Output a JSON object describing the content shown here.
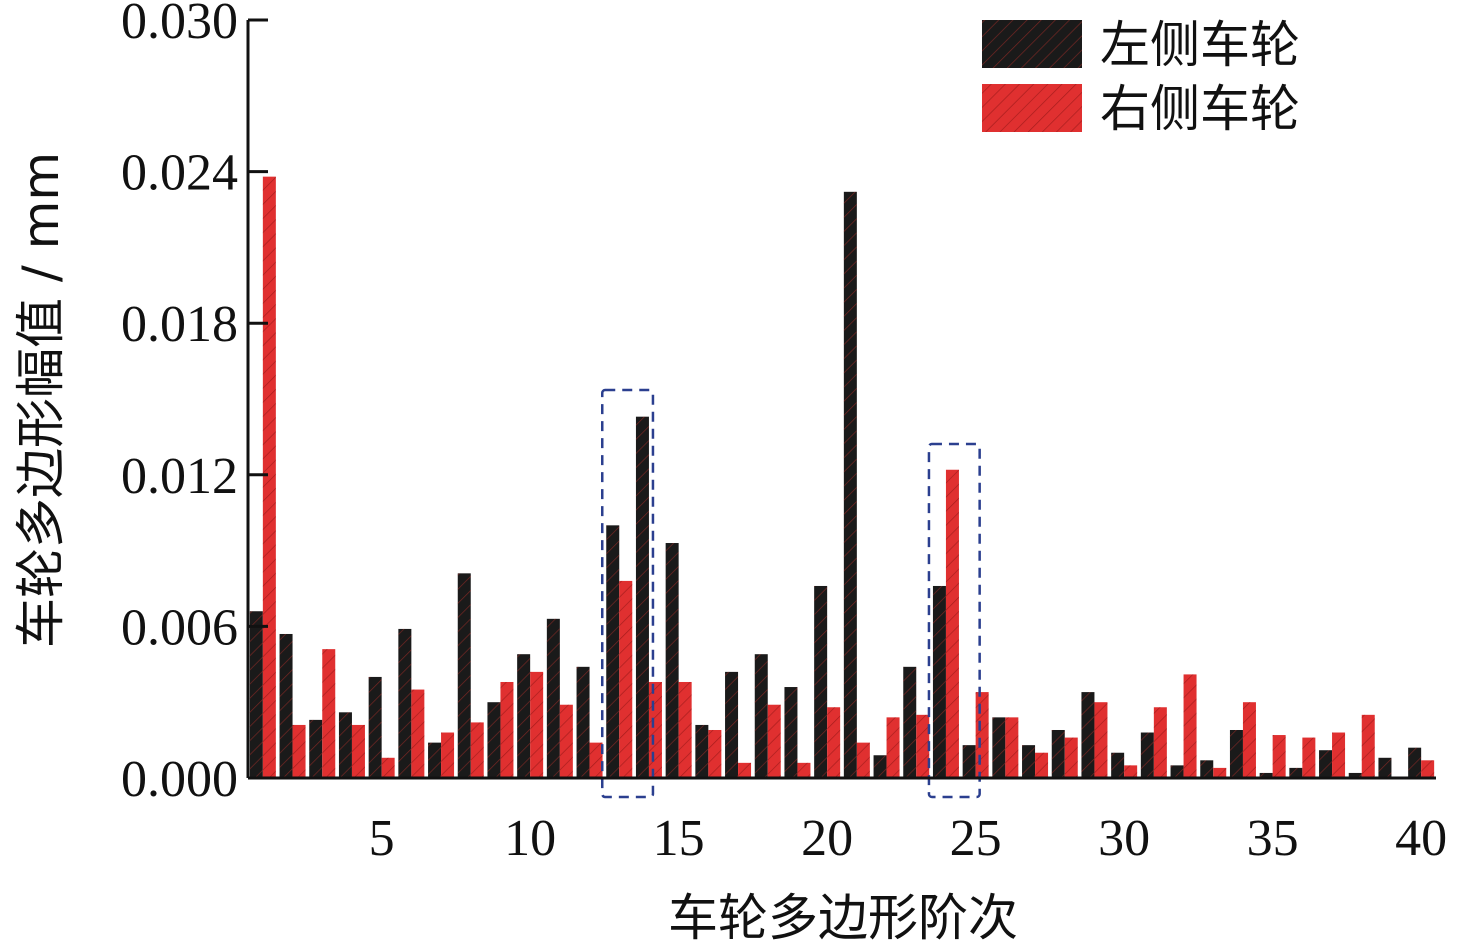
{
  "chart_data": {
    "type": "bar",
    "xlabel": "车轮多边形阶次",
    "ylabel": "车轮多边形幅值 / mm",
    "ylim": [
      0,
      0.03
    ],
    "xlim": [
      1,
      40
    ],
    "yticks": [
      "0.000",
      "0.006",
      "0.012",
      "0.018",
      "0.024",
      "0.030"
    ],
    "xticks": [
      "5",
      "10",
      "15",
      "20",
      "25",
      "30",
      "35",
      "40"
    ],
    "categories": [
      1,
      2,
      3,
      4,
      5,
      6,
      7,
      8,
      9,
      10,
      11,
      12,
      13,
      14,
      15,
      16,
      17,
      18,
      19,
      20,
      21,
      22,
      23,
      24,
      25,
      26,
      27,
      28,
      29,
      30,
      31,
      32,
      33,
      34,
      35,
      36,
      37,
      38,
      39,
      40
    ],
    "series": [
      {
        "name": "左侧车轮",
        "color": "#1a1a1a",
        "values": [
          0.0066,
          0.0057,
          0.0023,
          0.0026,
          0.004,
          0.0059,
          0.0014,
          0.0081,
          0.003,
          0.0049,
          0.0063,
          0.0044,
          0.01,
          0.0143,
          0.0093,
          0.0021,
          0.0042,
          0.0049,
          0.0036,
          0.0076,
          0.0232,
          0.0009,
          0.0044,
          0.0076,
          0.0013,
          0.0024,
          0.0013,
          0.0019,
          0.0034,
          0.001,
          0.0018,
          0.0005,
          0.0007,
          0.0019,
          0.0002,
          0.0004,
          0.0011,
          0.0002,
          0.0008,
          0.0012
        ]
      },
      {
        "name": "右侧车轮",
        "color": "#e03030",
        "values": [
          0.0238,
          0.0021,
          0.0051,
          0.0021,
          0.0008,
          0.0035,
          0.0018,
          0.0022,
          0.0038,
          0.0042,
          0.0029,
          0.0014,
          0.0078,
          0.0038,
          0.0038,
          0.0019,
          0.0006,
          0.0029,
          0.0006,
          0.0028,
          0.0014,
          0.0024,
          0.0025,
          0.0122,
          0.0034,
          0.0024,
          0.001,
          0.0016,
          0.003,
          0.0005,
          0.0028,
          0.0041,
          0.0004,
          0.003,
          0.0017,
          0.0016,
          0.0018,
          0.0025,
          0.0,
          0.0007
        ]
      }
    ],
    "highlight_boxes": [
      [
        13,
        14
      ],
      [
        24,
        25
      ]
    ],
    "legend_position": "top-right",
    "grid": false
  }
}
